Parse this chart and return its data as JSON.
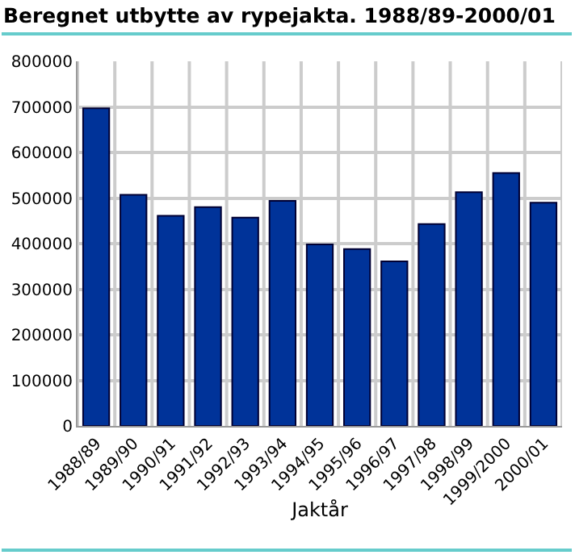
{
  "chart_data": {
    "type": "bar",
    "title": "Beregnet utbytte av rypejakta. 1988/89-2000/01",
    "xlabel": "Jaktår",
    "categories": [
      "1988/89",
      "1989/90",
      "1990/91",
      "1991/92",
      "1992/93",
      "1993/94",
      "1994/95",
      "1995/96",
      "1996/97",
      "1997/98",
      "1998/99",
      "1999/2000",
      "2000/01"
    ],
    "values": [
      697000,
      507000,
      461000,
      480000,
      457000,
      494000,
      398000,
      388000,
      361000,
      443000,
      513000,
      555000,
      490000
    ],
    "color": "#003399",
    "ylim": [
      0,
      800000
    ],
    "yticks": [
      0,
      100000,
      200000,
      300000,
      400000,
      500000,
      600000,
      700000,
      800000
    ],
    "grid": true
  }
}
